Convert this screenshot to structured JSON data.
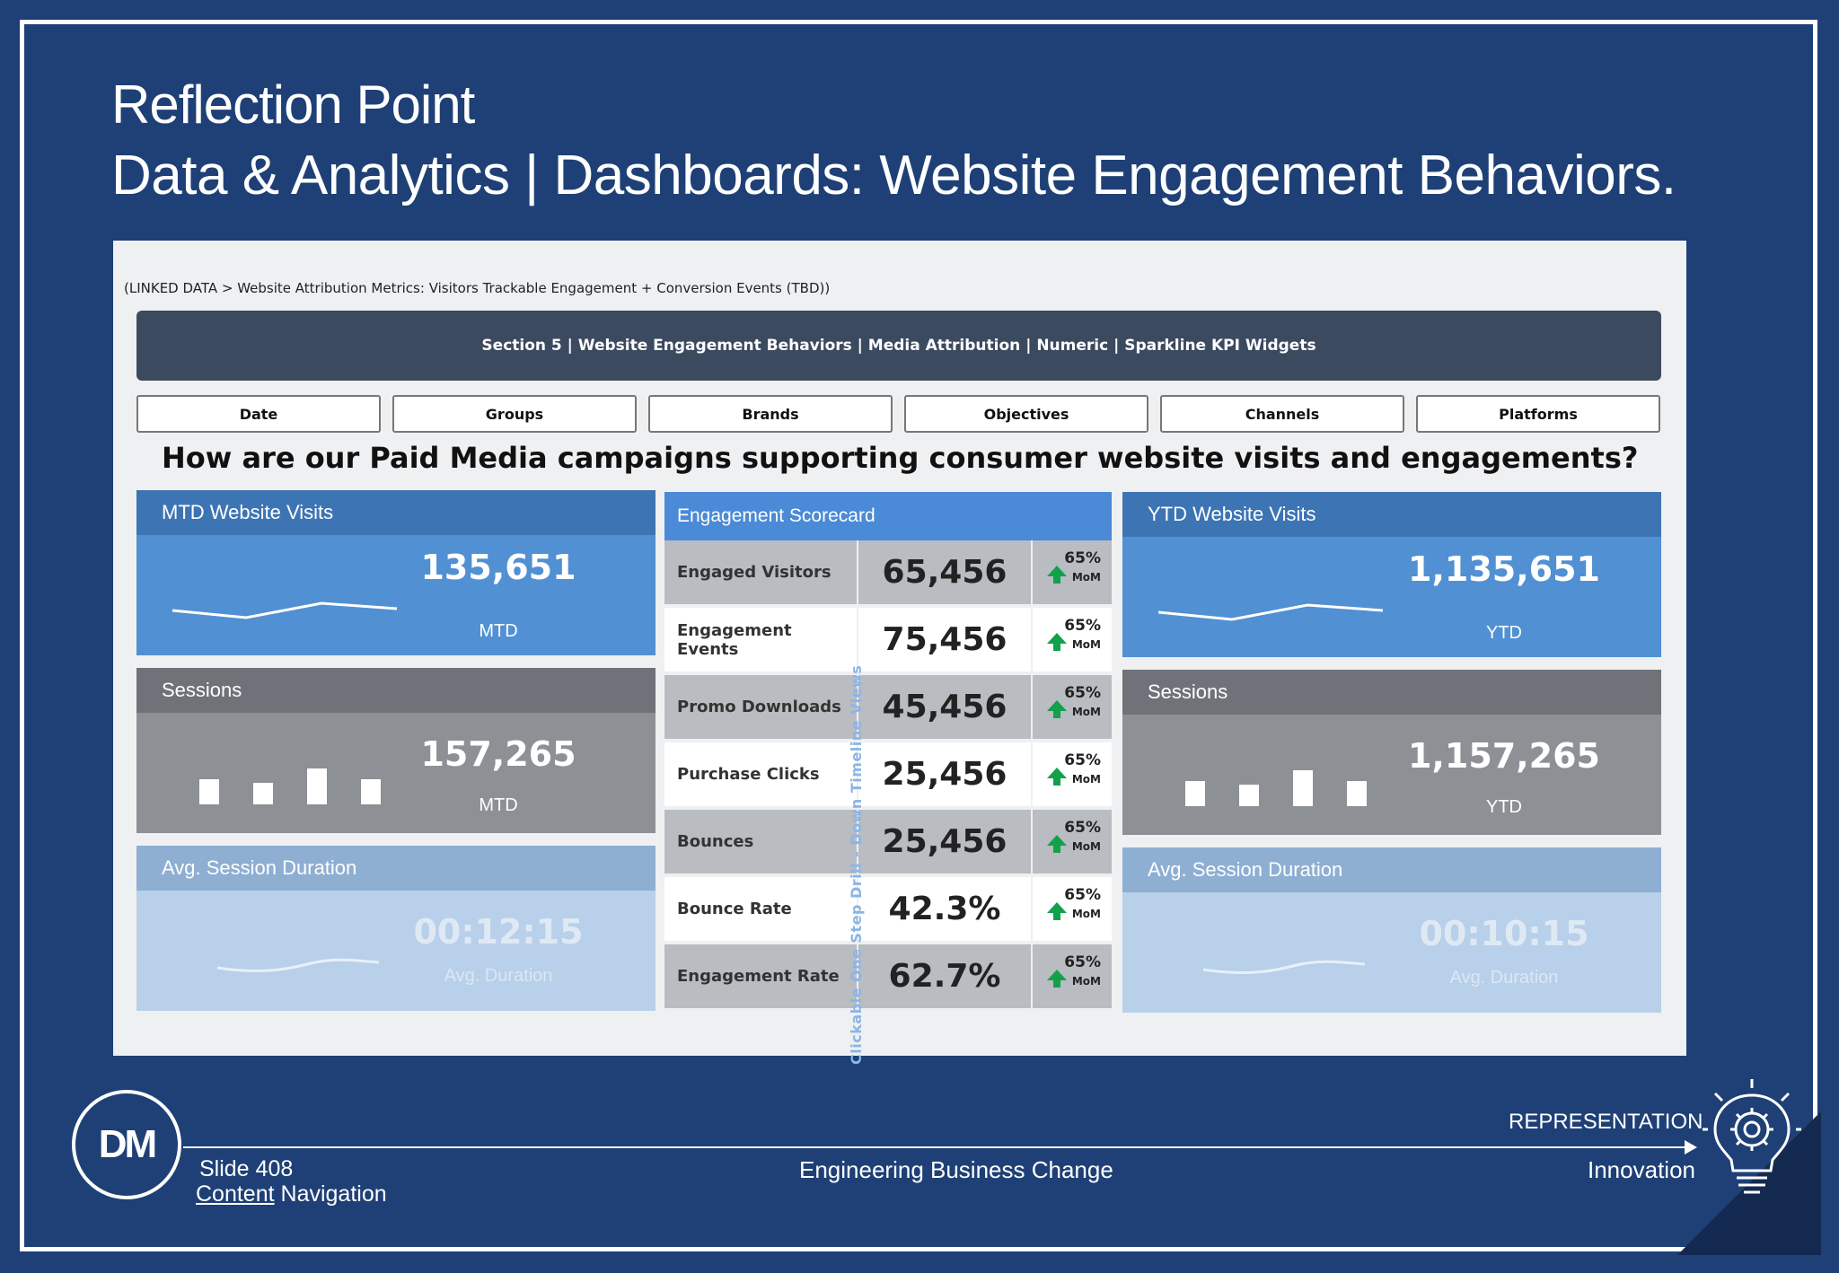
{
  "slide": {
    "title_line1": "Reflection Point",
    "title_line2": "Data & Analytics | Dashboards: Website Engagement Behaviors."
  },
  "dashboard": {
    "linked_data": "(LINKED DATA > Website Attribution Metrics: Visitors Trackable Engagement + Conversion Events (TBD))",
    "section_title": "Section 5 | Website Engagement Behaviors | Media Attribution | Numeric | Sparkline KPI Widgets",
    "filters": [
      "Date",
      "Groups",
      "Brands",
      "Objectives",
      "Channels",
      "Platforms"
    ],
    "question": "How are our Paid Media campaigns supporting consumer website visits and engagements?",
    "left_cards": [
      {
        "title": "MTD Website Visits",
        "value": "135,651",
        "sub": "MTD"
      },
      {
        "title": "Sessions",
        "value": "157,265",
        "sub": "MTD"
      },
      {
        "title": "Avg. Session Duration",
        "value": "00:12:15",
        "sub": "Avg. Duration"
      }
    ],
    "right_cards": [
      {
        "title": "YTD Website Visits",
        "value": "1,135,651",
        "sub": "YTD"
      },
      {
        "title": "Sessions",
        "value": "1,157,265",
        "sub": "YTD"
      },
      {
        "title": "Avg. Session Duration",
        "value": "00:10:15",
        "sub": "Avg. Duration"
      }
    ],
    "scorecard": {
      "title": "Engagement Scorecard",
      "vertical_label": "Clickable One Step Drill - Down Timeline Views",
      "rows": [
        {
          "label": "Engaged Visitors",
          "value": "65,456",
          "pct": "65%",
          "mom": "MoM"
        },
        {
          "label": "Engagement Events",
          "value": "75,456",
          "pct": "65%",
          "mom": "MoM"
        },
        {
          "label": "Promo Downloads",
          "value": "45,456",
          "pct": "65%",
          "mom": "MoM"
        },
        {
          "label": "Purchase Clicks",
          "value": "25,456",
          "pct": "65%",
          "mom": "MoM"
        },
        {
          "label": "Bounces",
          "value": "25,456",
          "pct": "65%",
          "mom": "MoM"
        },
        {
          "label": "Bounce Rate",
          "value": "42.3%",
          "pct": "65%",
          "mom": "MoM"
        },
        {
          "label": "Engagement Rate",
          "value": "62.7%",
          "pct": "65%",
          "mom": "MoM"
        }
      ]
    }
  },
  "footer": {
    "logo": "DM",
    "slide_number": "Slide 408",
    "nav_link_word": "Content",
    "nav_rest": " Navigation",
    "center": "Engineering Business Change",
    "representation": "REPRESENTATION",
    "innovation": "Innovation"
  },
  "colors": {
    "background": "#1e4076",
    "card_blue": "#5190d3",
    "card_gray": "#8d9095",
    "card_light": "#b8d0ea",
    "scorecard_header": "#4a8ad6",
    "up_arrow": "#12a14b"
  },
  "icons": [
    "lightbulb-gear-icon",
    "up-arrow-icon"
  ]
}
